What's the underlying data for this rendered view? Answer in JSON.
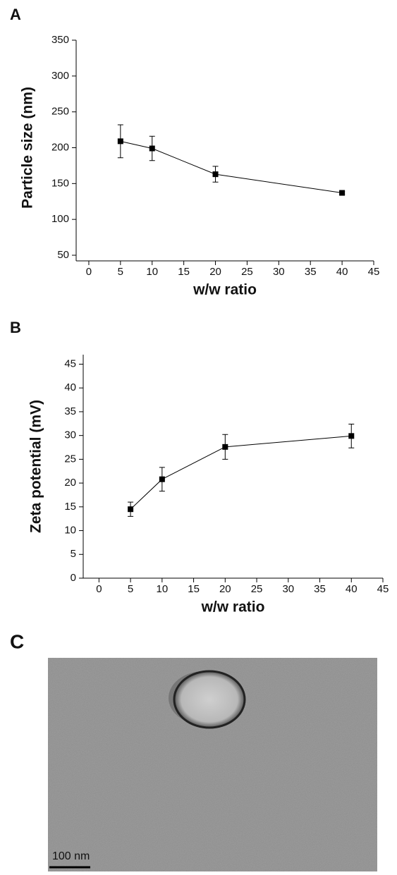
{
  "chart_data": [
    {
      "type": "line",
      "panel_label": "A",
      "y_label": "Particle size (nm)",
      "x_label": "w/w ratio",
      "x": [
        5,
        10,
        20,
        40
      ],
      "values": [
        209,
        199,
        163,
        137
      ],
      "errors": [
        23,
        17,
        11,
        2
      ],
      "color": "#000000",
      "xlim": [
        -2,
        45
      ],
      "xticks": [
        0,
        5,
        10,
        15,
        20,
        25,
        30,
        35,
        40,
        45
      ],
      "ylim": [
        50,
        350
      ],
      "yticks": [
        50,
        100,
        150,
        200,
        250,
        300,
        350
      ]
    },
    {
      "type": "line",
      "panel_label": "B",
      "y_label": "Zeta potential (mV)",
      "x_label": "w/w ratio",
      "x": [
        5,
        10,
        20,
        40
      ],
      "values": [
        14.5,
        20.8,
        27.6,
        29.9
      ],
      "errors": [
        1.5,
        2.5,
        2.6,
        2.5
      ],
      "color": "#000000",
      "xlim": [
        -2.5,
        45
      ],
      "xticks": [
        0,
        5,
        10,
        15,
        20,
        25,
        30,
        35,
        40,
        45
      ],
      "ylim": [
        0,
        47
      ],
      "yticks": [
        0,
        5,
        10,
        15,
        20,
        25,
        30,
        35,
        40,
        45
      ]
    }
  ],
  "image": {
    "panel_label": "C",
    "scale_bar": "100 nm"
  }
}
